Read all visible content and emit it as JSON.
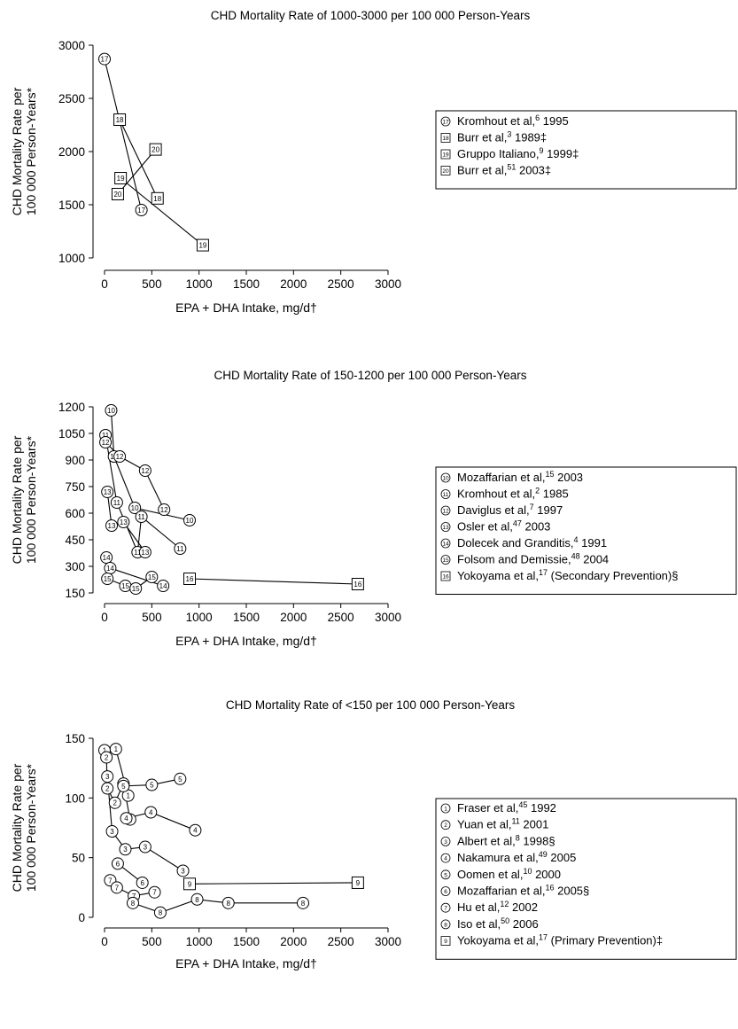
{
  "chart_data": [
    {
      "type": "scatter",
      "title": "CHD Mortality Rate of 1000-3000 per 100 000 Person-Years",
      "xlabel": "EPA + DHA Intake, mg/d†",
      "ylabel_line1": "CHD Mortality Rate per",
      "ylabel_line2": "100 000 Person-Years*",
      "xlim": [
        0,
        3000
      ],
      "ylim": [
        1000,
        3000
      ],
      "xticks": [
        0,
        500,
        1000,
        1500,
        2000,
        2500,
        3000
      ],
      "yticks": [
        1000,
        1500,
        2000,
        2500,
        3000
      ],
      "xtick_labels": [
        "0",
        "500",
        "1000",
        "1500",
        "2000",
        "2500",
        "3000"
      ],
      "ytick_labels": [
        "1000",
        "1500",
        "2000",
        "2500",
        "3000"
      ],
      "legend_position": "right",
      "series": [
        {
          "id": "17",
          "marker": "circle",
          "legend": [
            "Kromhout et al,",
            "6",
            " 1995"
          ],
          "points": [
            [
              0,
              2870
            ],
            [
              390,
              1450
            ]
          ]
        },
        {
          "id": "18",
          "marker": "square",
          "legend": [
            "Burr et al,",
            "3",
            " 1989‡"
          ],
          "points": [
            [
              160,
              2300
            ],
            [
              560,
              1560
            ]
          ]
        },
        {
          "id": "19",
          "marker": "square",
          "legend": [
            "Gruppo Italiano,",
            "9",
            " 1999‡"
          ],
          "points": [
            [
              170,
              1750
            ],
            [
              1040,
              1120
            ]
          ]
        },
        {
          "id": "20",
          "marker": "square",
          "legend": [
            "Burr et al,",
            "51",
            " 2003‡"
          ],
          "points": [
            [
              140,
              1600
            ],
            [
              540,
              2020
            ]
          ]
        }
      ]
    },
    {
      "type": "scatter",
      "title": "CHD Mortality Rate of 150-1200 per 100 000 Person-Years",
      "xlabel": "EPA + DHA Intake, mg/d†",
      "ylabel_line1": "CHD Mortality Rate per",
      "ylabel_line2": "100 000 Person-Years*",
      "xlim": [
        0,
        3000
      ],
      "ylim": [
        150,
        1200
      ],
      "xticks": [
        0,
        500,
        1000,
        1500,
        2000,
        2500,
        3000
      ],
      "yticks": [
        150,
        300,
        450,
        600,
        750,
        900,
        1050,
        1200
      ],
      "xtick_labels": [
        "0",
        "500",
        "1000",
        "1500",
        "2000",
        "2500",
        "3000"
      ],
      "ytick_labels": [
        "150",
        "300",
        "450",
        "600",
        "750",
        "900",
        "1050",
        "1200"
      ],
      "legend_position": "right",
      "series": [
        {
          "id": "10",
          "marker": "circle",
          "legend": [
            "Mozaffarian et al,",
            "15",
            " 2003"
          ],
          "points": [
            [
              70,
              1180
            ],
            [
              100,
              920
            ],
            [
              320,
              630
            ],
            [
              900,
              560
            ]
          ]
        },
        {
          "id": "11",
          "marker": "circle",
          "legend": [
            "Kromhout et al,",
            "2",
            " 1985"
          ],
          "points": [
            [
              10,
              1040
            ],
            [
              130,
              660
            ],
            [
              350,
              380
            ],
            [
              390,
              580
            ],
            [
              800,
              400
            ]
          ]
        },
        {
          "id": "12",
          "marker": "circle",
          "legend": [
            "Daviglus et al,",
            "7",
            " 1997"
          ],
          "points": [
            [
              10,
              1000
            ],
            [
              160,
              920
            ],
            [
              430,
              840
            ],
            [
              630,
              620
            ]
          ]
        },
        {
          "id": "13",
          "marker": "circle",
          "legend": [
            "Osler et al,",
            "47",
            " 2003"
          ],
          "points": [
            [
              30,
              720
            ],
            [
              75,
              530
            ],
            [
              200,
              550
            ],
            [
              430,
              380
            ]
          ]
        },
        {
          "id": "14",
          "marker": "circle",
          "legend": [
            "Dolecek and Granditis,",
            "4",
            " 1991"
          ],
          "points": [
            [
              20,
              350
            ],
            [
              60,
              290
            ],
            [
              620,
              190
            ]
          ]
        },
        {
          "id": "15",
          "marker": "circle",
          "legend": [
            "Folsom and Demissie,",
            "48",
            " 2004"
          ],
          "points": [
            [
              30,
              230
            ],
            [
              220,
              190
            ],
            [
              330,
              175
            ],
            [
              500,
              240
            ]
          ]
        },
        {
          "id": "16",
          "marker": "square",
          "legend": [
            "Yokoyama et al,",
            "17",
            " (Secondary Prevention)§"
          ],
          "points": [
            [
              900,
              230
            ],
            [
              2680,
              200
            ]
          ]
        }
      ]
    },
    {
      "type": "scatter",
      "title": "CHD Mortality Rate of <150 per 100 000 Person-Years",
      "xlabel": "EPA + DHA Intake, mg/d†",
      "ylabel_line1": "CHD Mortality Rate per",
      "ylabel_line2": "100 000 Person-Years*",
      "xlim": [
        0,
        3000
      ],
      "ylim": [
        0,
        150
      ],
      "xticks": [
        0,
        500,
        1000,
        1500,
        2000,
        2500,
        3000
      ],
      "yticks": [
        0,
        50,
        100,
        150
      ],
      "xtick_labels": [
        "0",
        "500",
        "1000",
        "1500",
        "2000",
        "2500",
        "3000"
      ],
      "ytick_labels": [
        "0",
        "50",
        "100",
        "150"
      ],
      "legend_position": "right",
      "series": [
        {
          "id": "1",
          "marker": "circle",
          "legend": [
            "Fraser et al,",
            "45",
            " 1992"
          ],
          "points": [
            [
              0,
              140
            ],
            [
              120,
              141
            ],
            [
              250,
              102
            ]
          ]
        },
        {
          "id": "2",
          "marker": "circle",
          "legend": [
            "Yuan et al,",
            "11",
            " 2001"
          ],
          "points": [
            [
              20,
              134
            ],
            [
              30,
              108
            ],
            [
              110,
              96
            ],
            [
              200,
              112
            ],
            [
              270,
              82
            ]
          ]
        },
        {
          "id": "3",
          "marker": "circle",
          "legend": [
            "Albert et al,",
            "8",
            " 1998§"
          ],
          "points": [
            [
              30,
              118
            ],
            [
              80,
              72
            ],
            [
              220,
              57
            ],
            [
              430,
              59
            ],
            [
              830,
              39
            ]
          ]
        },
        {
          "id": "4",
          "marker": "circle",
          "legend": [
            "Nakamura et al,",
            "49",
            " 2005"
          ],
          "points": [
            [
              230,
              83
            ],
            [
              490,
              88
            ],
            [
              960,
              73
            ]
          ]
        },
        {
          "id": "5",
          "marker": "circle",
          "legend": [
            "Oomen et al,",
            "10",
            " 2000"
          ],
          "points": [
            [
              200,
              110
            ],
            [
              500,
              111
            ],
            [
              800,
              116
            ]
          ]
        },
        {
          "id": "6",
          "marker": "circle",
          "legend": [
            "Mozaffarian et al,",
            "16",
            " 2005§"
          ],
          "points": [
            [
              140,
              45
            ],
            [
              400,
              29
            ]
          ]
        },
        {
          "id": "7",
          "marker": "circle",
          "legend": [
            "Hu et al,",
            "12",
            " 2002"
          ],
          "points": [
            [
              60,
              31
            ],
            [
              130,
              25
            ],
            [
              310,
              18
            ],
            [
              530,
              21
            ]
          ]
        },
        {
          "id": "8",
          "marker": "circle",
          "legend": [
            "Iso et al,",
            "50",
            " 2006"
          ],
          "points": [
            [
              300,
              12
            ],
            [
              590,
              4
            ],
            [
              980,
              15
            ],
            [
              1310,
              12
            ],
            [
              2100,
              12
            ]
          ]
        },
        {
          "id": "9",
          "marker": "square",
          "legend": [
            "Yokoyama et al,",
            "17",
            " (Primary Prevention)‡"
          ],
          "points": [
            [
              900,
              28
            ],
            [
              2680,
              29
            ]
          ]
        }
      ]
    }
  ]
}
